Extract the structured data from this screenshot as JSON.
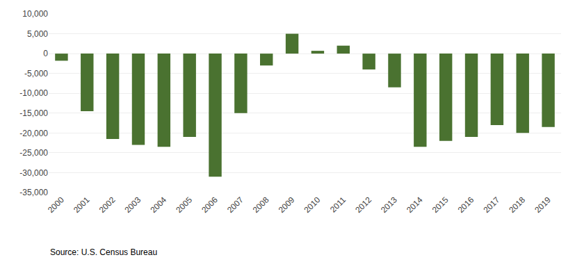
{
  "chart_data": {
    "type": "bar",
    "categories": [
      "2000",
      "2001",
      "2002",
      "2003",
      "2004",
      "2005",
      "2006",
      "2007",
      "2008",
      "2009",
      "2010",
      "2011",
      "2012",
      "2013",
      "2014",
      "2015",
      "2016",
      "2017",
      "2018",
      "2019"
    ],
    "values": [
      -1800,
      -14500,
      -21500,
      -23000,
      -23500,
      -21000,
      -31000,
      -15000,
      -3000,
      5000,
      700,
      2000,
      -4000,
      -8500,
      -23500,
      -22000,
      -21000,
      -18000,
      -20000,
      -18500
    ],
    "color": "#4a7230",
    "ylim": [
      -35000,
      10000
    ],
    "yticks": [
      {
        "value": -35000,
        "label": "-35,000"
      },
      {
        "value": -30000,
        "label": "-30,000"
      },
      {
        "value": -25000,
        "label": "-25,000"
      },
      {
        "value": -20000,
        "label": "-20,000"
      },
      {
        "value": -15000,
        "label": "-15,000"
      },
      {
        "value": -10000,
        "label": "-10,000"
      },
      {
        "value": -5000,
        "label": "-5,000"
      },
      0,
      {
        "value": 5000,
        "label": "5,000"
      },
      {
        "value": 10000,
        "label": "10,000"
      }
    ],
    "grid": true,
    "annotations": [
      "Source: U.S. Census Bureau"
    ]
  }
}
